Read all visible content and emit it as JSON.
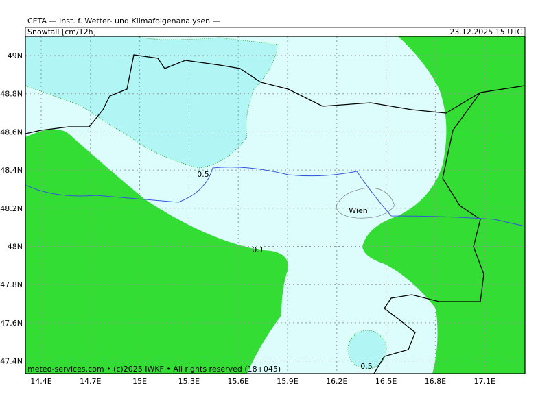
{
  "header": {
    "title": "CETA — Inst. f. Wetter- und Klimafolgenanalysen —",
    "variable": "Snowfall [cm/12h]",
    "datetime": "23.12.2025 15 UTC"
  },
  "footer": "meteo-services.com • (c)2025 IWKF • All rights reserved (18+045)",
  "axes": {
    "lat_labels": [
      "49N",
      "48.8N",
      "48.6N",
      "48.4N",
      "48.2N",
      "48N",
      "47.8N",
      "47.6N",
      "47.4N"
    ],
    "lon_labels": [
      "14.4E",
      "14.7E",
      "15E",
      "15.3E",
      "15.6E",
      "15.9E",
      "16.2E",
      "16.5E",
      "16.8E",
      "17.1E"
    ]
  },
  "contour_labels": [
    "0.5",
    "0.1",
    "0.5"
  ],
  "places": [
    "Wien"
  ]
}
